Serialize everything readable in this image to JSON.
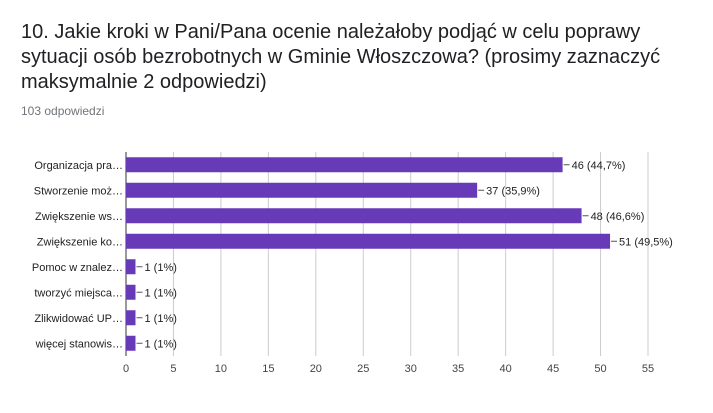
{
  "question": {
    "title": "10. Jakie kroki w Pani/Pana ocenie należałoby podjąć w celu poprawy sytuacji osób bezrobotnych w Gminie Włoszczowa? (prosimy zaznaczyć maksymalnie 2 odpowiedzi)",
    "responses": "103 odpowiedzi"
  },
  "chart_data": {
    "type": "bar",
    "orientation": "horizontal",
    "categories": [
      "Organizacja pra…",
      "Stworzenie moż…",
      "Zwiększenie ws…",
      "Zwiększenie ko…",
      "Pomoc w znalez…",
      "tworzyć miejsca…",
      "Zlikwidować UP…",
      "więcej stanowis…"
    ],
    "values": [
      46,
      37,
      48,
      51,
      1,
      1,
      1,
      1
    ],
    "data_labels": [
      "46 (44,7%)",
      "37 (35,9%)",
      "48 (46,6%)",
      "51 (49,5%)",
      "1 (1%)",
      "1 (1%)",
      "1 (1%)",
      "1 (1%)"
    ],
    "xlim": [
      0,
      55
    ],
    "xticks": [
      "0",
      "5",
      "10",
      "15",
      "20",
      "25",
      "30",
      "35",
      "40",
      "45",
      "50",
      "55"
    ],
    "grid": true,
    "bar_color": "#673ab7",
    "title": "",
    "xlabel": "",
    "ylabel": ""
  }
}
